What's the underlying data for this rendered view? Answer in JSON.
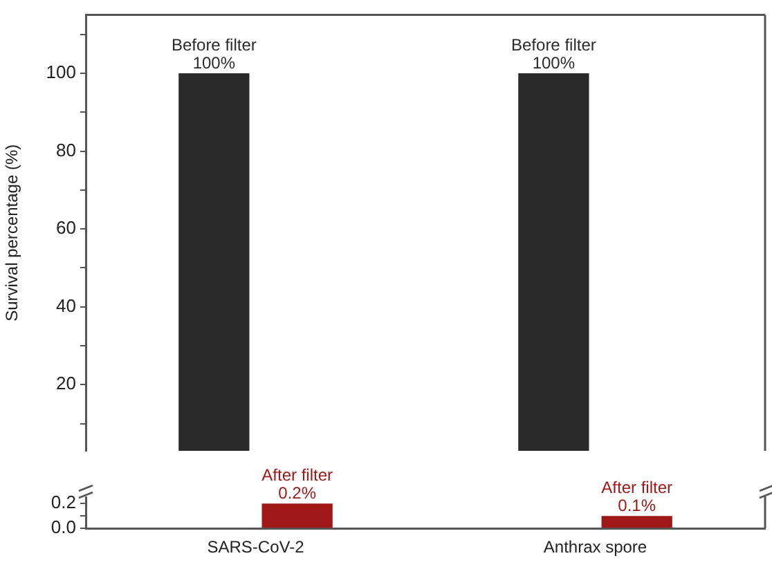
{
  "chart_data": [
    {
      "type": "bar",
      "ylabel": "Survival percentage (%)",
      "tick_labels": "y",
      "series": [
        {
          "name": "Before filter",
          "color": "#2a2a2a",
          "values": [
            100,
            100
          ],
          "value_labels": [
            "100%",
            "100%"
          ]
        },
        {
          "color": "#a01818",
          "values": [
            null,
            null
          ]
        }
      ],
      "ylim": [
        3,
        115
      ],
      "yticks": [
        {
          "value": 10,
          "label": null
        },
        20,
        {
          "value": 30,
          "label": null
        },
        40,
        {
          "value": 50,
          "label": null
        },
        60,
        {
          "value": 70,
          "label": null
        },
        80,
        {
          "value": 90,
          "label": null
        },
        100,
        {
          "value": 110,
          "label": null
        }
      ]
    },
    {
      "type": "bar",
      "categories": [
        "SARS-CoV-2",
        "Anthrax spore"
      ],
      "series": [
        {
          "color": "#2a2a2a",
          "values": [
            null,
            null
          ]
        },
        {
          "name": "After filter",
          "color": "#a01818",
          "values": [
            0.2,
            0.1
          ],
          "value_labels": [
            "0.2%",
            "0.1%"
          ]
        }
      ],
      "ylim": [
        0,
        0.28
      ],
      "yticks": [
        {
          "value": 0,
          "label": "0.0"
        },
        {
          "value": 0.1,
          "label": null
        },
        {
          "value": 0.2,
          "label": "0.2"
        }
      ]
    }
  ]
}
